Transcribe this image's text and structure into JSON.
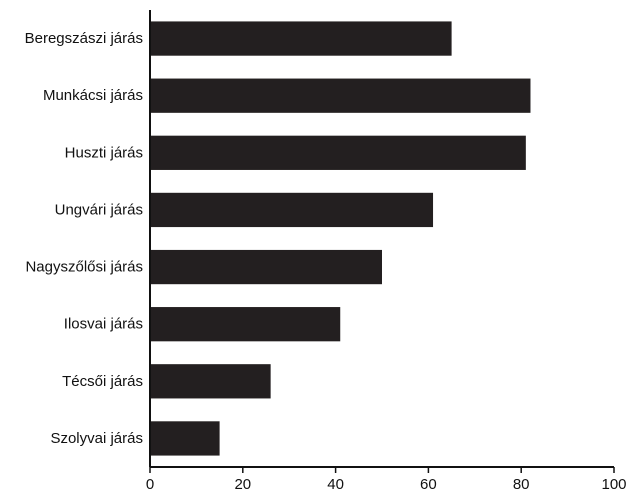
{
  "chart_data": {
    "type": "bar",
    "orientation": "horizontal",
    "title": "",
    "xlabel": "",
    "ylabel": "",
    "categories": [
      "Beregszászi járás",
      "Munkácsi járás",
      "Huszti járás",
      "Ungvári járás",
      "Nagyszőlősi járás",
      "Ilosvai járás",
      "Técsői járás",
      "Szolyvai járás"
    ],
    "values": [
      65,
      82,
      81,
      61,
      50,
      41,
      26,
      15
    ],
    "xlim": [
      0,
      100
    ],
    "xticks": [
      0,
      20,
      40,
      60,
      80,
      100
    ],
    "grid": false,
    "legend": "none",
    "bar_color": "#231f20"
  }
}
